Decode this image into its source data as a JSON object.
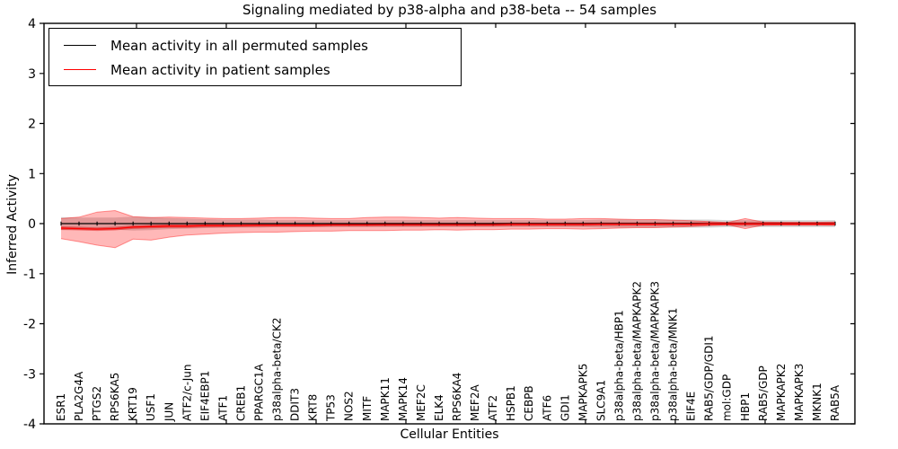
{
  "figure": {
    "title": "Signaling mediated by p38-alpha and p38-beta -- 54 samples",
    "xlabel": "Cellular Entities",
    "ylabel": "Inferred Activity"
  },
  "legend": {
    "position": "upper left",
    "items": [
      {
        "label": "Mean activity in all permuted samples",
        "color": "#000000"
      },
      {
        "label": "Mean activity in patient samples",
        "color": "#ff0000"
      }
    ]
  },
  "chart_data": {
    "type": "line",
    "title": "Signaling mediated by p38-alpha and p38-beta -- 54 samples",
    "xlabel": "Cellular Entities",
    "ylabel": "Inferred Activity",
    "ylim": [
      -4,
      4
    ],
    "yticks": [
      4,
      3,
      2,
      1,
      0,
      -1,
      -2,
      -3,
      -4
    ],
    "grid": false,
    "legend_position": "upper left",
    "categories": [
      "ESR1",
      "PLA2G4A",
      "PTGS2",
      "RPS6KA5",
      "KRT19",
      "USF1",
      "JUN",
      "ATF2/c-Jun",
      "EIF4EBP1",
      "ATF1",
      "CREB1",
      "PPARGC1A",
      "p38alpha-beta/CK2",
      "DDIT3",
      "KRT8",
      "TP53",
      "NOS2",
      "MITF",
      "MAPK11",
      "MAPK14",
      "MEF2C",
      "ELK4",
      "RPS6KA4",
      "MEF2A",
      "ATF2",
      "HSPB1",
      "CEBPB",
      "ATF6",
      "GDI1",
      "MAPKAPK5",
      "SLC9A1",
      "p38alpha-beta/HBP1",
      "p38alpha-beta/MAPKAPK2",
      "p38alpha-beta/MAPKAPK3",
      "p38alpha-beta/MNK1",
      "EIF4E",
      "RAB5/GDP/GDI1",
      "mol:GDP",
      "HBP1",
      "RAB5/GDP",
      "MAPKAPK2",
      "MAPKAPK3",
      "MKNK1",
      "RAB5A"
    ],
    "series": [
      {
        "name": "Mean activity in all permuted samples",
        "color": "#000000",
        "values": [
          0,
          0,
          0,
          0,
          0,
          0,
          0,
          0,
          0,
          0,
          0,
          0,
          0,
          0,
          0,
          0,
          0,
          0,
          0,
          0,
          0,
          0,
          0,
          0,
          0,
          0,
          0,
          0,
          0,
          0,
          0,
          0,
          0,
          0,
          0,
          0,
          0,
          0,
          0,
          0,
          0,
          0,
          0,
          0
        ]
      },
      {
        "name": "Mean activity in patient samples",
        "color": "#ff0000",
        "values": [
          -0.09,
          -0.1,
          -0.11,
          -0.1,
          -0.07,
          -0.06,
          -0.05,
          -0.05,
          -0.04,
          -0.04,
          -0.035,
          -0.03,
          -0.03,
          -0.03,
          -0.03,
          -0.025,
          -0.025,
          -0.025,
          -0.02,
          -0.02,
          -0.02,
          -0.02,
          -0.02,
          -0.02,
          -0.02,
          -0.015,
          -0.015,
          -0.015,
          -0.015,
          -0.015,
          -0.01,
          -0.01,
          -0.01,
          -0.01,
          -0.01,
          -0.01,
          -0.005,
          -0.005,
          -0.005,
          -0.005,
          -0.005,
          -0.005,
          -0.005,
          -0.005
        ]
      }
    ],
    "bands": {
      "permuted_half_width": [
        0.13,
        0.12,
        0.12,
        0.12,
        0.14,
        0.13,
        0.11,
        0.1,
        0.09,
        0.08,
        0.08,
        0.08,
        0.07,
        0.07,
        0.07,
        0.07,
        0.07,
        0.07,
        0.07,
        0.07,
        0.07,
        0.07,
        0.07,
        0.07,
        0.07,
        0.07,
        0.07,
        0.07,
        0.07,
        0.07,
        0.08,
        0.08,
        0.08,
        0.08,
        0.08,
        0.08,
        0.08,
        0.07,
        0.07,
        0.07,
        0.07,
        0.07,
        0.07,
        0.07
      ],
      "patient_hi": [
        0.1,
        0.13,
        0.23,
        0.26,
        0.14,
        0.12,
        0.13,
        0.12,
        0.11,
        0.1,
        0.1,
        0.11,
        0.12,
        0.12,
        0.11,
        0.1,
        0.1,
        0.12,
        0.13,
        0.13,
        0.12,
        0.11,
        0.12,
        0.11,
        0.1,
        0.1,
        0.1,
        0.09,
        0.09,
        0.1,
        0.1,
        0.09,
        0.08,
        0.08,
        0.07,
        0.06,
        0.04,
        0.02,
        0.1,
        0.03,
        0.025,
        0.025,
        0.025,
        0.03
      ],
      "patient_lo": [
        -0.3,
        -0.36,
        -0.43,
        -0.48,
        -0.31,
        -0.33,
        -0.27,
        -0.23,
        -0.21,
        -0.19,
        -0.18,
        -0.17,
        -0.17,
        -0.16,
        -0.15,
        -0.15,
        -0.14,
        -0.14,
        -0.14,
        -0.13,
        -0.13,
        -0.12,
        -0.13,
        -0.12,
        -0.12,
        -0.11,
        -0.11,
        -0.1,
        -0.1,
        -0.11,
        -0.1,
        -0.09,
        -0.08,
        -0.08,
        -0.07,
        -0.06,
        -0.04,
        -0.02,
        -0.1,
        -0.03,
        -0.025,
        -0.025,
        -0.025,
        -0.03
      ],
      "patient_core_half_width": 0.035
    },
    "colors": {
      "permuted_band": "rgba(0,0,0,0.16)",
      "patient_band": "rgba(255,0,0,0.28)",
      "patient_band_edge": "rgba(255,0,0,0.40)",
      "patient_core_band": "rgba(225,0,0,0.45)",
      "permuted_line": "#000000",
      "patient_line": "#ff0000"
    }
  }
}
